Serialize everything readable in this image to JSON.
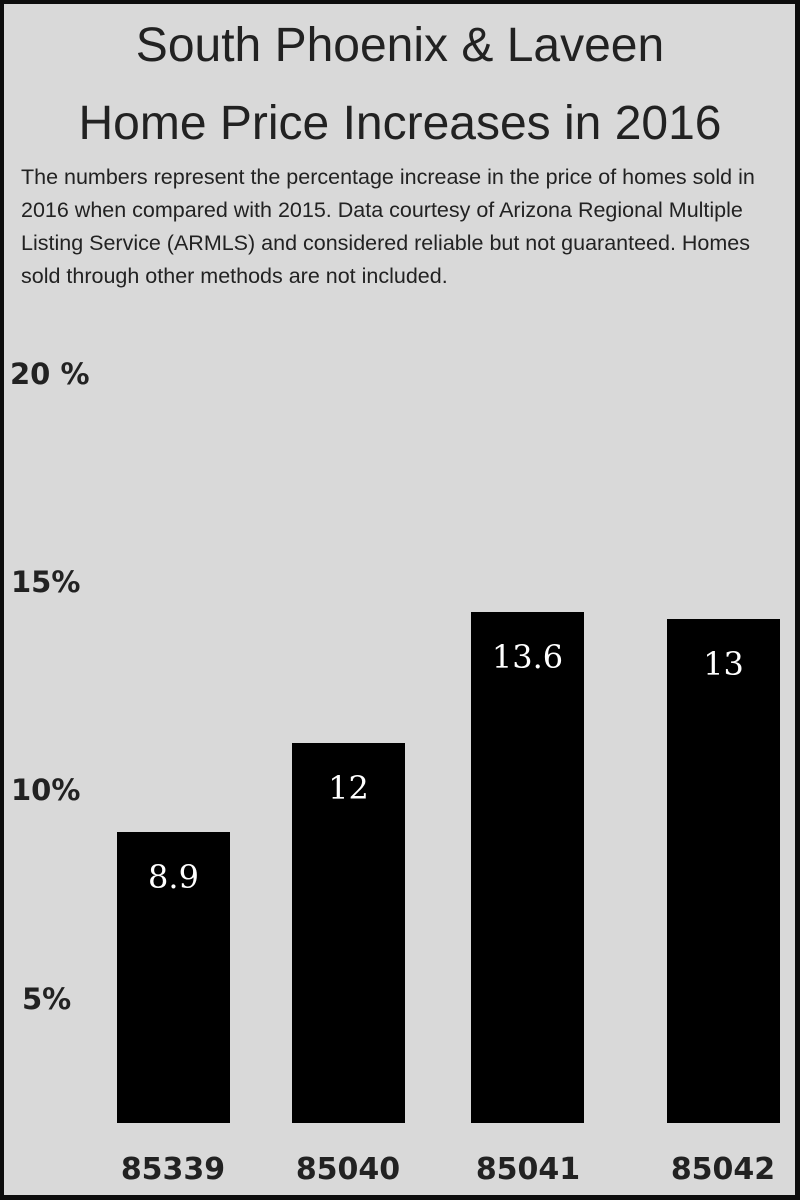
{
  "chart_data": {
    "type": "bar",
    "title": "South Phoenix & Laveen Home Price Increases in 2016",
    "title_lines": [
      "South Phoenix & Laveen",
      "Home Price Increases in 2016"
    ],
    "description": "The numbers represent the percentage increase in the price of homes sold in 2016 when compared with 2015. Data courtesy of Arizona Regional Multiple Listing Service (ARMLS) and considered reliable but not guaranteed. Homes sold through other methods are not included.",
    "categories": [
      "85339",
      "85040",
      "85041",
      "85042"
    ],
    "values": [
      8.9,
      12,
      13.6,
      13
    ],
    "data_labels": [
      "8.9",
      "12",
      "13.6",
      "13"
    ],
    "y_ticks": [
      {
        "value": 20,
        "label": "20 %"
      },
      {
        "value": 15,
        "label": "15%"
      },
      {
        "value": 10,
        "label": "10%"
      },
      {
        "value": 5,
        "label": "5%"
      }
    ],
    "xlabel": "",
    "ylabel": "",
    "ylim": [
      0,
      20
    ],
    "grid": false,
    "bar_color": "#000000",
    "label_color": "#ffffff",
    "background": "#d9d9d9"
  }
}
